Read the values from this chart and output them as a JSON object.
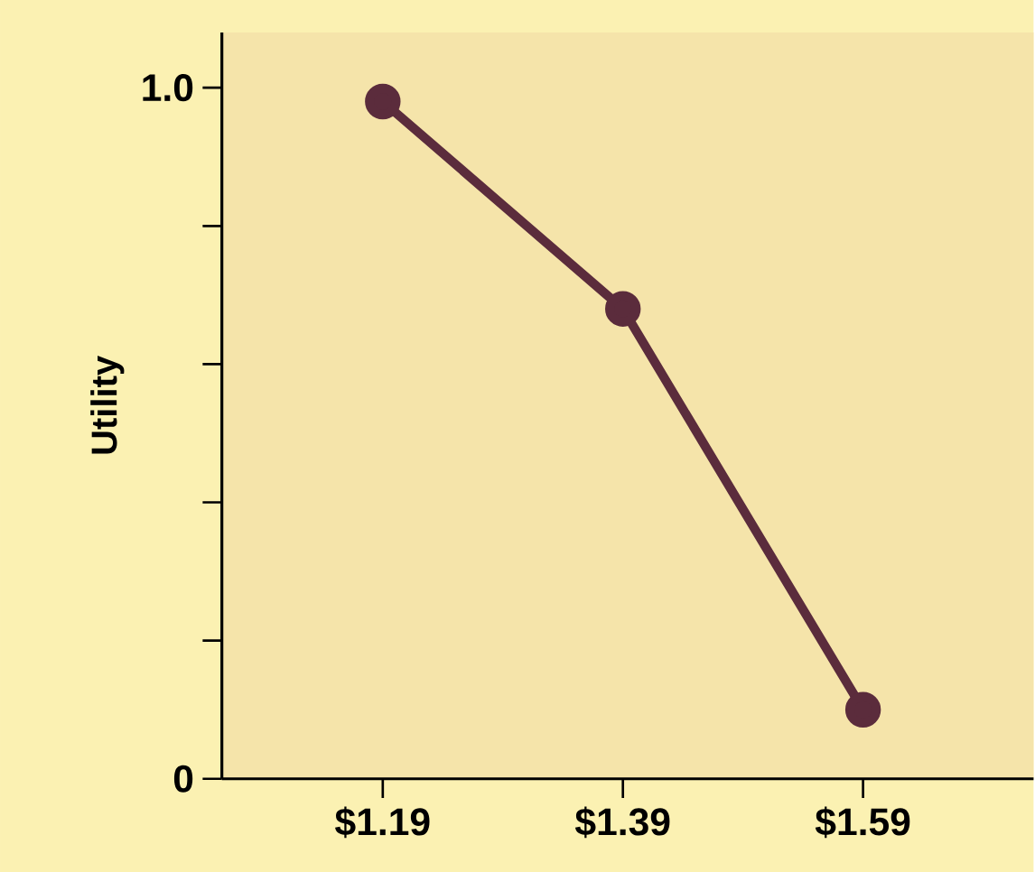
{
  "chart_data": {
    "type": "line",
    "ylabel": "Utility",
    "categories": [
      "$1.19",
      "$1.39",
      "$1.59"
    ],
    "series": [
      {
        "color": "#5b2c3c",
        "values": [
          0.98,
          0.68,
          0.1
        ]
      }
    ],
    "ylim": [
      0,
      1.08
    ],
    "yticks": [
      0,
      {
        "value": 0.2,
        "label": null
      },
      {
        "value": 0.4,
        "label": null
      },
      {
        "value": 0.6,
        "label": null
      },
      {
        "value": 0.8,
        "label": null
      },
      {
        "value": 1.0,
        "label": "1.0"
      }
    ],
    "marker": "circle",
    "line_style": "solid",
    "grid": false
  }
}
